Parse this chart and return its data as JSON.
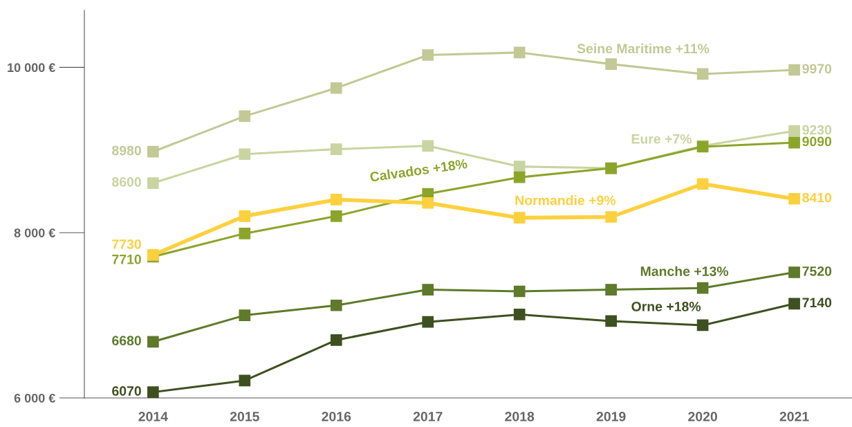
{
  "chart_data": {
    "type": "line",
    "x": [
      2014,
      2015,
      2016,
      2017,
      2018,
      2019,
      2020,
      2021
    ],
    "xlim": [
      2013.25,
      2021.63
    ],
    "xticks": [
      2014,
      2015,
      2016,
      2017,
      2018,
      2019,
      2020,
      2021
    ],
    "ylim": [
      6000,
      10690
    ],
    "yticks": [
      {
        "value": 6000,
        "label": "6 000 €"
      },
      {
        "value": 8000,
        "label": "8 000 €"
      },
      {
        "value": 10000,
        "label": "10 000 €"
      }
    ],
    "grid": false,
    "marker": "square",
    "line_style": "solid",
    "series": [
      {
        "name": "Seine Maritime +11%",
        "color": "#c2c995",
        "values": [
          8980,
          9410,
          9750,
          10150,
          10180,
          10040,
          9920,
          9970
        ],
        "value_labels": [
          "8980",
          null,
          null,
          null,
          null,
          null,
          null,
          "9970"
        ]
      },
      {
        "name": "Eure +7%",
        "color": "#c9d4a0",
        "values": [
          8600,
          8950,
          9010,
          9050,
          8800,
          8780,
          9050,
          9230
        ],
        "value_labels": [
          "8600",
          null,
          null,
          null,
          null,
          null,
          null,
          "9230"
        ]
      },
      {
        "name": "Calvados +18%",
        "color": "#8ba52a",
        "values": [
          7710,
          7990,
          8200,
          8470,
          8670,
          8780,
          9040,
          9090
        ],
        "value_labels": [
          "7710",
          null,
          null,
          null,
          null,
          null,
          null,
          "9090"
        ]
      },
      {
        "name": "Normandie +9%",
        "color": "#fdd03e",
        "values": [
          7730,
          8200,
          8400,
          8360,
          8180,
          8190,
          8590,
          8410
        ],
        "value_labels": [
          "7730",
          null,
          null,
          null,
          null,
          null,
          null,
          "8410"
        ]
      },
      {
        "name": "Manche +13%",
        "color": "#5e7a2a",
        "values": [
          6680,
          7000,
          7120,
          7310,
          7290,
          7310,
          7330,
          7520
        ],
        "value_labels": [
          "6680",
          null,
          null,
          null,
          null,
          null,
          null,
          "7520"
        ]
      },
      {
        "name": "Orne +18%",
        "color": "#3e5020",
        "values": [
          6070,
          6210,
          6700,
          6920,
          7010,
          6930,
          6880,
          7140
        ],
        "value_labels": [
          "6070",
          null,
          null,
          null,
          null,
          null,
          null,
          "7140"
        ]
      }
    ]
  }
}
